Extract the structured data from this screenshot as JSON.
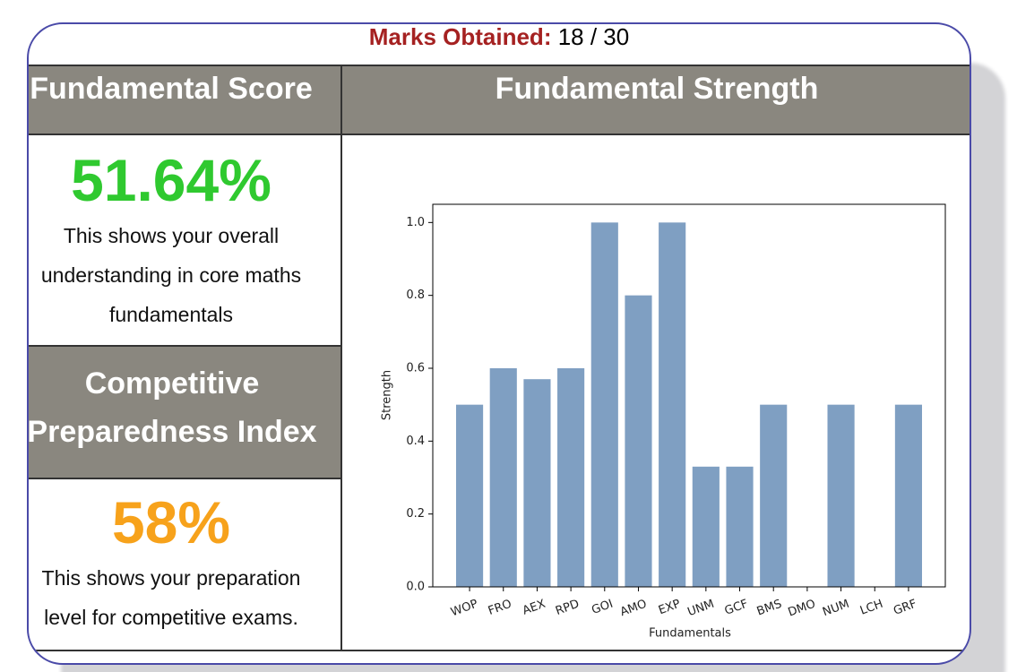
{
  "header": {
    "marks_label": "Marks Obtained:",
    "marks_value": "18 / 30"
  },
  "fundamental_score": {
    "title": "Fundamental Score",
    "value": "51.64%",
    "description": "This shows your overall understanding in core maths fundamentals"
  },
  "competitive_index": {
    "title": "Competitive Preparedness Index",
    "value": "58%",
    "description": "This shows your preparation level for competitive exams."
  },
  "strength_panel": {
    "title": "Fundamental Strength"
  },
  "chart_data": {
    "type": "bar",
    "categories": [
      "WOP",
      "FRO",
      "AEX",
      "RPD",
      "GOI",
      "AMO",
      "EXP",
      "UNM",
      "GCF",
      "BMS",
      "DMO",
      "NUM",
      "LCH",
      "GRF"
    ],
    "values": [
      0.5,
      0.6,
      0.57,
      0.6,
      1.0,
      0.8,
      1.0,
      0.33,
      0.33,
      0.5,
      0,
      0.5,
      0,
      0.5
    ],
    "color": "#7f9fc2",
    "xlabel": "Fundamentals",
    "ylabel": "Strength",
    "ylim": [
      0,
      1.05
    ],
    "yticks": [
      {
        "value": 0,
        "label": "0.0"
      },
      0.2,
      0.4,
      0.6,
      0.8,
      {
        "value": 1,
        "label": "1.0"
      }
    ]
  }
}
